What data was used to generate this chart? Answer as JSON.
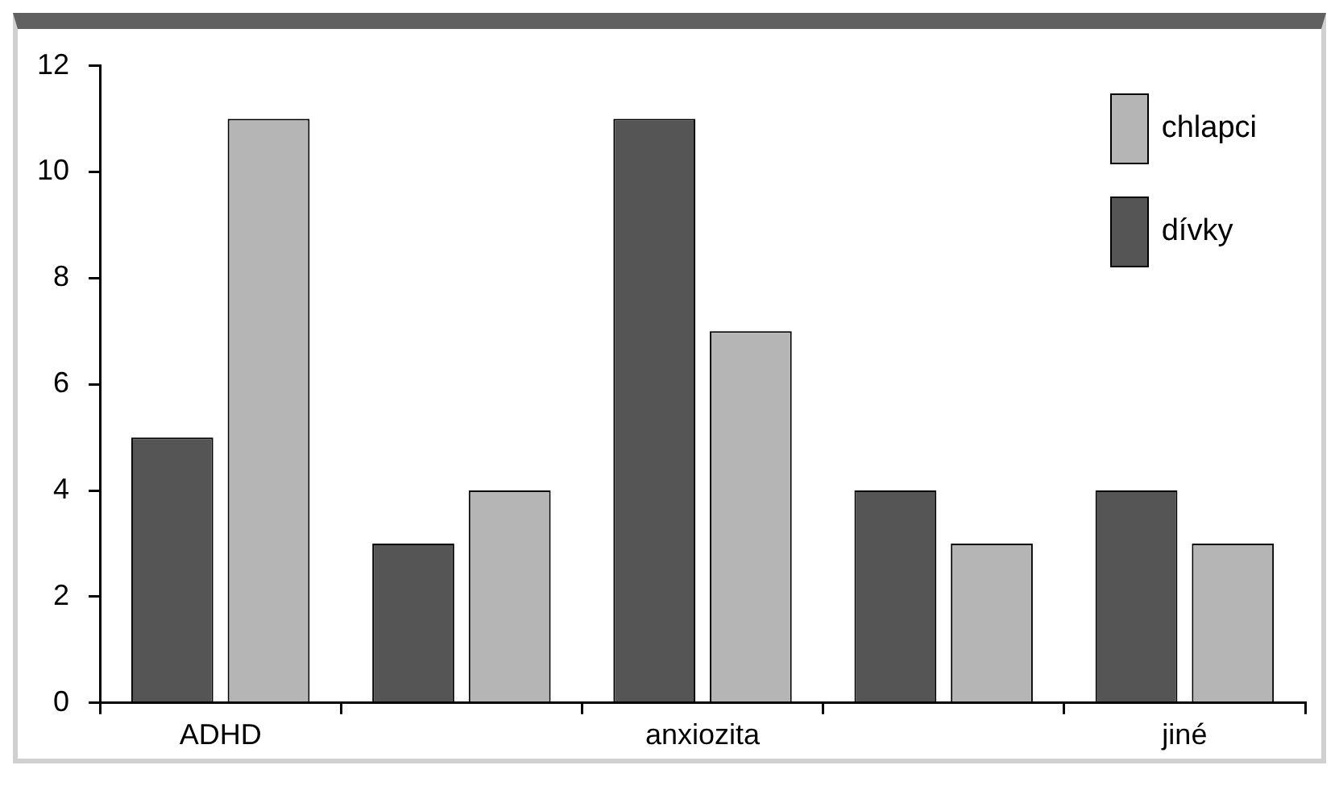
{
  "chart_data": {
    "type": "bar",
    "categories": [
      "ADHD",
      null,
      "anxiozita",
      null,
      "jiné"
    ],
    "series": [
      {
        "name": "dívky",
        "color": "#555555",
        "values": [
          5,
          3,
          11,
          4,
          4
        ]
      },
      {
        "name": "chlapci",
        "color": "#b5b5b5",
        "values": [
          11,
          4,
          7,
          3,
          3
        ]
      }
    ],
    "ylim": [
      0,
      12
    ],
    "yticks": [
      0,
      2,
      4,
      6,
      8,
      10,
      12
    ],
    "grid": false,
    "legend": "top right"
  }
}
